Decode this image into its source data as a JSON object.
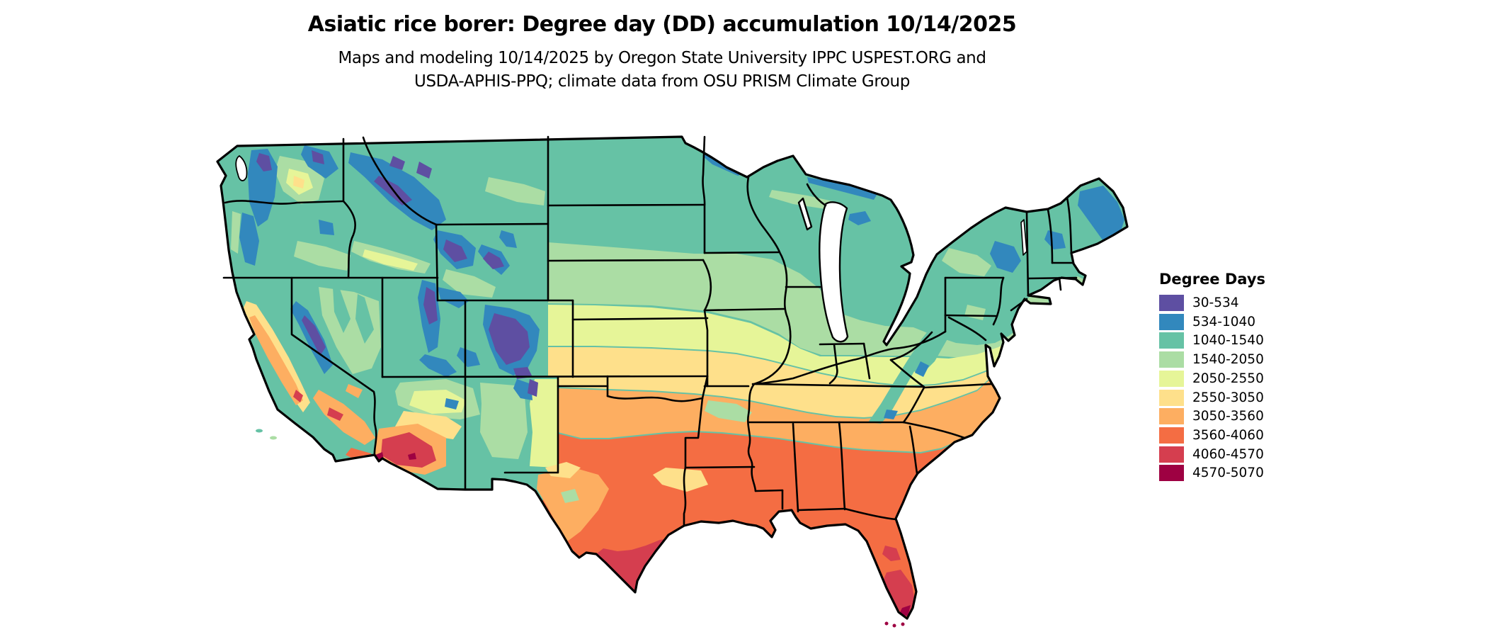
{
  "title": "Asiatic rice borer: Degree day (DD) accumulation 10/14/2025",
  "subtitle_line1": "Maps and modeling 10/14/2025 by Oregon State University IPPC USPEST.ORG and",
  "subtitle_line2": "USDA-APHIS-PPQ; climate data from OSU PRISM Climate Group",
  "legend": {
    "title": "Degree Days",
    "items": [
      {
        "label": "30-534",
        "color": "#5e4fa2"
      },
      {
        "label": "534-1040",
        "color": "#3288bd"
      },
      {
        "label": "1040-1540",
        "color": "#66c2a5"
      },
      {
        "label": "1540-2050",
        "color": "#abdda4"
      },
      {
        "label": "2050-2550",
        "color": "#e6f598"
      },
      {
        "label": "2550-3050",
        "color": "#fee08b"
      },
      {
        "label": "3050-3560",
        "color": "#fdae61"
      },
      {
        "label": "3560-4060",
        "color": "#f46d43"
      },
      {
        "label": "4060-4570",
        "color": "#d53e4f"
      },
      {
        "label": "4570-5070",
        "color": "#9e0142"
      }
    ]
  },
  "map": {
    "region": "Conterminous United States",
    "kind": "degree-day accumulation raster with state borders"
  }
}
